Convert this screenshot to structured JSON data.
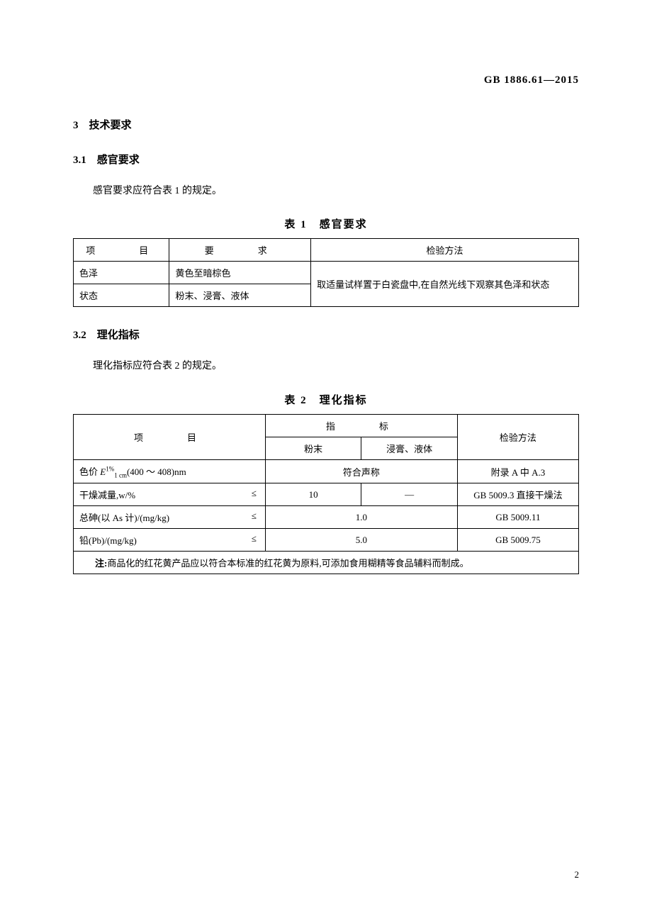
{
  "header": {
    "standard_code": "GB 1886.61—2015"
  },
  "sections": {
    "s3": {
      "number": "3",
      "title": "技术要求"
    },
    "s31": {
      "number": "3.1",
      "title": "感官要求",
      "body": "感官要求应符合表 1 的规定。"
    },
    "s32": {
      "number": "3.2",
      "title": "理化指标",
      "body": "理化指标应符合表 2 的规定。"
    }
  },
  "table1": {
    "caption": "表 1　感官要求",
    "columns": {
      "item": "项　　目",
      "requirement": "要　　求",
      "method": "检验方法"
    },
    "rows": [
      {
        "item": "色泽",
        "requirement": "黄色至暗棕色"
      },
      {
        "item": "状态",
        "requirement": "粉末、浸膏、液体"
      }
    ],
    "method_text": "取适量试样置于白瓷盘中,在自然光线下观察其色泽和状态",
    "col_widths": [
      "19%",
      "28%",
      "53%"
    ]
  },
  "table2": {
    "caption": "表 2　理化指标",
    "columns": {
      "item": "项　　目",
      "index": "指　　标",
      "powder": "粉末",
      "paste_liquid": "浸膏、液体",
      "method": "检验方法"
    },
    "rows": [
      {
        "item_html": "色价 <span class='italic'>E</span><span class='sup'>1%</span><span class='sub'>1 cm</span>(400 ～ 408)nm",
        "powder": "符合声称",
        "paste_liquid": "",
        "merged": true,
        "method": "附录 A 中 A.3"
      },
      {
        "item": "干燥减量,w/%",
        "leq": "≤",
        "powder": "10",
        "paste_liquid": "—",
        "method": "GB 5009.3 直接干燥法"
      },
      {
        "item": "总砷(以 As 计)/(mg/kg)",
        "leq": "≤",
        "powder": "1.0",
        "paste_liquid": "",
        "merged": true,
        "method": "GB 5009.11"
      },
      {
        "item": "铅(Pb)/(mg/kg)",
        "leq": "≤",
        "powder": "5.0",
        "paste_liquid": "",
        "merged": true,
        "method": "GB 5009.75"
      }
    ],
    "note_label": "注:",
    "note_text": "商品化的红花黄产品应以符合本标准的红花黄为原料,可添加食用糊精等食品辅料而制成。",
    "col_widths": [
      "38%",
      "19%",
      "19%",
      "24%"
    ]
  },
  "page_number": "2"
}
